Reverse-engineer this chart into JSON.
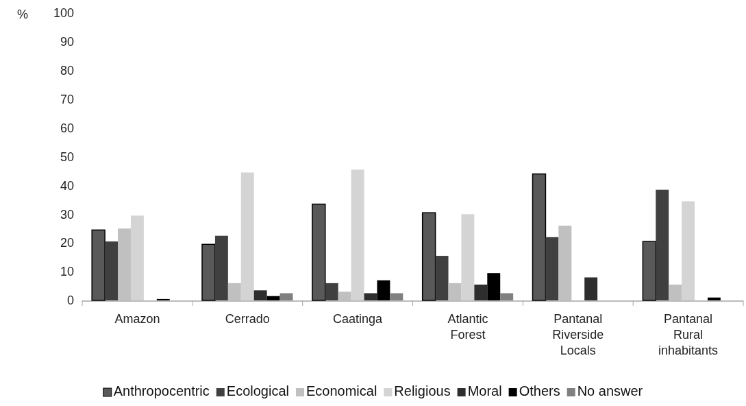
{
  "chart_data": {
    "type": "bar",
    "ylabel": "%",
    "categories": [
      "Amazon",
      "Cerrado",
      "Caatinga",
      "Atlantic Forest",
      "Pantanal Riverside Locals",
      "Pantanal Rural inhabitants"
    ],
    "series": [
      {
        "name": "Anthropocentric",
        "color": "#595959",
        "values": [
          24.5,
          19.5,
          33.5,
          30.5,
          44,
          20.5
        ]
      },
      {
        "name": "Ecological",
        "color": "#404040",
        "values": [
          20.5,
          22.5,
          6,
          15.5,
          22,
          38.5
        ]
      },
      {
        "name": "Economical",
        "color": "#c0c0c0",
        "values": [
          25,
          6,
          3,
          6,
          26,
          5.5
        ]
      },
      {
        "name": "Religious",
        "color": "#d4d4d4",
        "values": [
          29.5,
          44.5,
          45.5,
          30,
          0,
          34.5
        ]
      },
      {
        "name": "Moral",
        "color": "#2e2e2e",
        "values": [
          0,
          3.5,
          2.5,
          5.5,
          8,
          0
        ]
      },
      {
        "name": "Others",
        "color": "#000000",
        "values": [
          0.5,
          1.5,
          7,
          9.5,
          0,
          1
        ]
      },
      {
        "name": "No answer",
        "color": "#808080",
        "values": [
          0,
          2.5,
          2.5,
          2.5,
          0,
          0
        ]
      }
    ],
    "ylim": [
      0,
      100
    ],
    "yticks": [
      0,
      10,
      20,
      30,
      40,
      50,
      60,
      70,
      80,
      90,
      100
    ],
    "grid": false,
    "legend": "bottom"
  }
}
